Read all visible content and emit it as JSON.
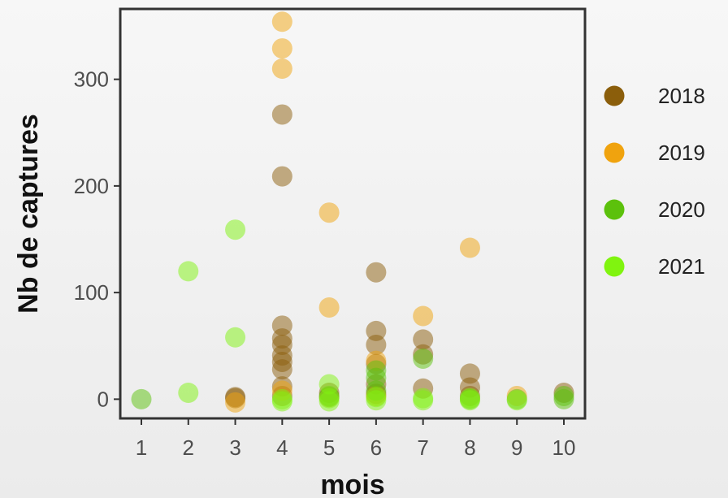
{
  "chart_data": {
    "type": "scatter",
    "title": "",
    "xlabel": "mois",
    "ylabel": "Nb de captures",
    "x_ticks": [
      "1",
      "2",
      "3",
      "4",
      "5",
      "6",
      "7",
      "8",
      "9",
      "10"
    ],
    "y_ticks": [
      "0",
      "100",
      "200",
      "300"
    ],
    "xlim": [
      0.55,
      10.45
    ],
    "ylim": [
      -18,
      366
    ],
    "grid": false,
    "legend_position": "right",
    "series": [
      {
        "name": "2018",
        "color": "#8b5e0b",
        "points": [
          {
            "x": 3,
            "y": 1
          },
          {
            "x": 3,
            "y": 2
          },
          {
            "x": 4,
            "y": 267
          },
          {
            "x": 4,
            "y": 209
          },
          {
            "x": 4,
            "y": 69
          },
          {
            "x": 4,
            "y": 57
          },
          {
            "x": 4,
            "y": 51
          },
          {
            "x": 4,
            "y": 41
          },
          {
            "x": 4,
            "y": 35
          },
          {
            "x": 4,
            "y": 28
          },
          {
            "x": 4,
            "y": 12
          },
          {
            "x": 4,
            "y": 3
          },
          {
            "x": 5,
            "y": 6
          },
          {
            "x": 5,
            "y": 2
          },
          {
            "x": 6,
            "y": 119
          },
          {
            "x": 6,
            "y": 64
          },
          {
            "x": 6,
            "y": 51
          },
          {
            "x": 6,
            "y": 33
          },
          {
            "x": 6,
            "y": 14
          },
          {
            "x": 6,
            "y": 5
          },
          {
            "x": 7,
            "y": 56
          },
          {
            "x": 7,
            "y": 42
          },
          {
            "x": 7,
            "y": 10
          },
          {
            "x": 8,
            "y": 24
          },
          {
            "x": 8,
            "y": 11
          },
          {
            "x": 8,
            "y": 3
          },
          {
            "x": 10,
            "y": 6
          }
        ]
      },
      {
        "name": "2019",
        "color": "#f0a30e",
        "points": [
          {
            "x": 3,
            "y": -3
          },
          {
            "x": 4,
            "y": 354
          },
          {
            "x": 4,
            "y": 329
          },
          {
            "x": 4,
            "y": 310
          },
          {
            "x": 4,
            "y": 8
          },
          {
            "x": 5,
            "y": 175
          },
          {
            "x": 5,
            "y": 86
          },
          {
            "x": 6,
            "y": 36
          },
          {
            "x": 6,
            "y": 3
          },
          {
            "x": 7,
            "y": 78
          },
          {
            "x": 8,
            "y": 142
          },
          {
            "x": 9,
            "y": 3
          }
        ]
      },
      {
        "name": "2020",
        "color": "#5cc10c",
        "points": [
          {
            "x": 1,
            "y": 0
          },
          {
            "x": 5,
            "y": 3
          },
          {
            "x": 6,
            "y": 27
          },
          {
            "x": 6,
            "y": 20
          },
          {
            "x": 6,
            "y": 8
          },
          {
            "x": 7,
            "y": 38
          },
          {
            "x": 8,
            "y": 0
          },
          {
            "x": 9,
            "y": 0
          },
          {
            "x": 10,
            "y": 3
          },
          {
            "x": 10,
            "y": 0
          }
        ]
      },
      {
        "name": "2021",
        "color": "#80f40f",
        "points": [
          {
            "x": 2,
            "y": 120
          },
          {
            "x": 2,
            "y": 6
          },
          {
            "x": 3,
            "y": 159
          },
          {
            "x": 3,
            "y": 58
          },
          {
            "x": 4,
            "y": 0
          },
          {
            "x": 4,
            "y": -2
          },
          {
            "x": 5,
            "y": 14
          },
          {
            "x": 5,
            "y": 1
          },
          {
            "x": 5,
            "y": -2
          },
          {
            "x": 6,
            "y": 2
          },
          {
            "x": 6,
            "y": -1
          },
          {
            "x": 7,
            "y": 1
          },
          {
            "x": 7,
            "y": -1
          },
          {
            "x": 8,
            "y": 1
          },
          {
            "x": 8,
            "y": -1
          },
          {
            "x": 9,
            "y": -1
          }
        ]
      }
    ]
  }
}
